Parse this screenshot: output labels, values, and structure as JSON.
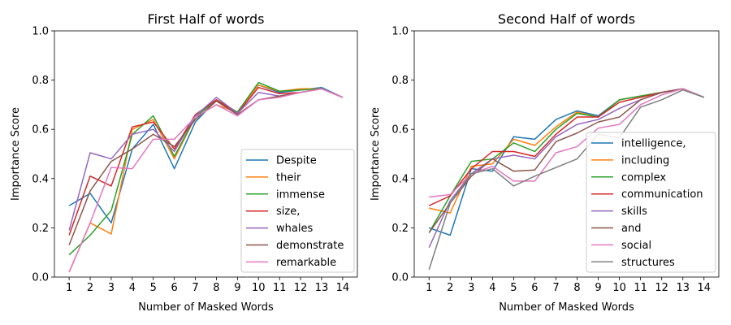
{
  "chart_data": [
    {
      "type": "line",
      "title": "First Half of words",
      "xlabel": "Number of Masked Words",
      "ylabel": "Importance Score",
      "x": [
        1,
        2,
        3,
        4,
        5,
        6,
        7,
        8,
        9,
        10,
        11,
        12,
        13,
        14
      ],
      "xlim": [
        0.3,
        14.7
      ],
      "ylim": [
        0,
        1.0
      ],
      "yticks": [
        "0.0",
        "0.2",
        "0.4",
        "0.6",
        "0.8",
        "1.0"
      ],
      "xticks": [
        "1",
        "2",
        "3",
        "4",
        "5",
        "6",
        "7",
        "8",
        "9",
        "10",
        "11",
        "12",
        "13",
        "14"
      ],
      "grid": false,
      "legend_position": "lower-right",
      "series": [
        {
          "name": "Despite",
          "color": "#1f77b4",
          "values": [
            0.29,
            0.34,
            0.22,
            0.52,
            0.62,
            0.44,
            0.63,
            0.72,
            0.67,
            0.78,
            0.75,
            0.76,
            0.77,
            0.73
          ]
        },
        {
          "name": "their",
          "color": "#ff7f0e",
          "values": [
            0.02,
            0.22,
            0.175,
            0.6,
            0.64,
            0.48,
            0.65,
            0.7,
            0.67,
            0.78,
            0.755,
            0.765,
            0.765,
            0.73
          ]
        },
        {
          "name": "immense",
          "color": "#2ca02c",
          "values": [
            0.09,
            0.17,
            0.27,
            0.58,
            0.655,
            0.49,
            0.65,
            0.72,
            0.67,
            0.79,
            0.755,
            0.76,
            0.765,
            0.73
          ]
        },
        {
          "name": "size,",
          "color": "#d62728",
          "values": [
            0.17,
            0.41,
            0.37,
            0.61,
            0.63,
            0.52,
            0.66,
            0.72,
            0.665,
            0.77,
            0.745,
            0.75,
            0.765,
            0.73
          ]
        },
        {
          "name": "whales",
          "color": "#9467bd",
          "values": [
            0.19,
            0.505,
            0.48,
            0.58,
            0.6,
            0.51,
            0.655,
            0.73,
            0.665,
            0.75,
            0.735,
            0.75,
            0.765,
            0.73
          ]
        },
        {
          "name": "demonstrate",
          "color": "#8c564b",
          "values": [
            0.13,
            0.35,
            0.47,
            0.52,
            0.58,
            0.53,
            0.64,
            0.715,
            0.66,
            0.72,
            0.735,
            0.75,
            0.765,
            0.73
          ]
        },
        {
          "name": "remarkable",
          "color": "#e377c2",
          "values": [
            0.02,
            0.22,
            0.445,
            0.44,
            0.56,
            0.56,
            0.65,
            0.7,
            0.655,
            0.72,
            0.73,
            0.75,
            0.765,
            0.73
          ]
        }
      ]
    },
    {
      "type": "line",
      "title": "Second Half of words",
      "xlabel": "Number of Masked Words",
      "ylabel": "Importance Score",
      "x": [
        1,
        2,
        3,
        4,
        5,
        6,
        7,
        8,
        9,
        10,
        11,
        12,
        13,
        14
      ],
      "xlim": [
        0.3,
        14.7
      ],
      "ylim": [
        0,
        1.0
      ],
      "yticks": [
        "0.0",
        "0.2",
        "0.4",
        "0.6",
        "0.8",
        "1.0"
      ],
      "xticks": [
        "1",
        "2",
        "3",
        "4",
        "5",
        "6",
        "7",
        "8",
        "9",
        "10",
        "11",
        "12",
        "13",
        "14"
      ],
      "grid": false,
      "legend_position": "lower-right",
      "series": [
        {
          "name": "intelligence,",
          "color": "#1f77b4",
          "values": [
            0.2,
            0.17,
            0.44,
            0.43,
            0.57,
            0.56,
            0.64,
            0.675,
            0.655,
            0.72,
            0.735,
            0.75,
            0.765,
            0.73
          ]
        },
        {
          "name": "including",
          "color": "#ff7f0e",
          "values": [
            0.28,
            0.26,
            0.45,
            0.46,
            0.56,
            0.535,
            0.61,
            0.67,
            0.65,
            0.72,
            0.735,
            0.75,
            0.765,
            0.73
          ]
        },
        {
          "name": "complex",
          "color": "#2ca02c",
          "values": [
            0.18,
            0.33,
            0.47,
            0.48,
            0.545,
            0.51,
            0.6,
            0.665,
            0.65,
            0.72,
            0.735,
            0.75,
            0.765,
            0.73
          ]
        },
        {
          "name": "communication",
          "color": "#d62728",
          "values": [
            0.29,
            0.33,
            0.44,
            0.51,
            0.51,
            0.49,
            0.58,
            0.65,
            0.65,
            0.71,
            0.73,
            0.75,
            0.765,
            0.73
          ]
        },
        {
          "name": "skills",
          "color": "#9467bd",
          "values": [
            0.12,
            0.31,
            0.42,
            0.48,
            0.495,
            0.48,
            0.57,
            0.62,
            0.64,
            0.685,
            0.72,
            0.75,
            0.765,
            0.73
          ]
        },
        {
          "name": "and",
          "color": "#8c564b",
          "values": [
            0.18,
            0.3,
            0.41,
            0.48,
            0.43,
            0.435,
            0.55,
            0.585,
            0.63,
            0.65,
            0.72,
            0.75,
            0.765,
            0.73
          ]
        },
        {
          "name": "social",
          "color": "#e377c2",
          "values": [
            0.325,
            0.335,
            0.42,
            0.45,
            0.39,
            0.39,
            0.505,
            0.53,
            0.605,
            0.62,
            0.7,
            0.74,
            0.765,
            0.73
          ]
        },
        {
          "name": "structures",
          "color": "#7f7f7f",
          "values": [
            0.03,
            0.3,
            0.42,
            0.44,
            0.37,
            0.41,
            0.445,
            0.48,
            0.58,
            0.565,
            0.69,
            0.72,
            0.76,
            0.73
          ]
        }
      ]
    }
  ]
}
